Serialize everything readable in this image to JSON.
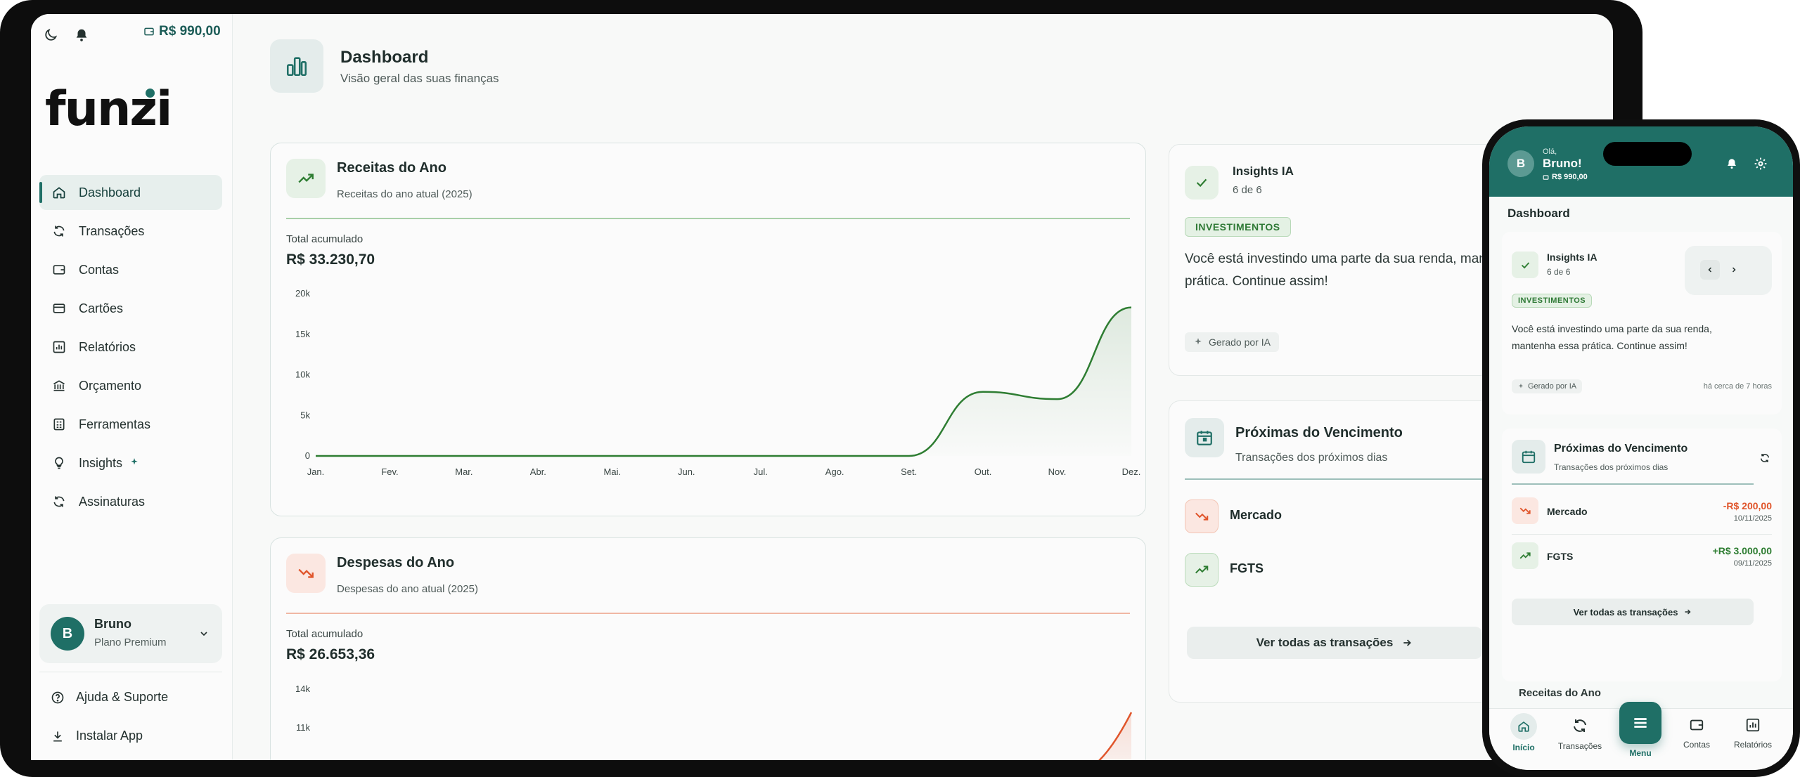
{
  "desktop": {
    "topbar": {
      "balance": "R$ 990,00"
    },
    "logo": "funzi",
    "nav": [
      {
        "label": "Dashboard",
        "icon": "home-icon",
        "active": true
      },
      {
        "label": "Transações",
        "icon": "transactions-icon"
      },
      {
        "label": "Contas",
        "icon": "wallet-icon"
      },
      {
        "label": "Cartões",
        "icon": "card-icon"
      },
      {
        "label": "Relatórios",
        "icon": "chart-icon"
      },
      {
        "label": "Orçamento",
        "icon": "bank-icon"
      },
      {
        "label": "Ferramentas",
        "icon": "calculator-icon"
      },
      {
        "label": "Insights",
        "icon": "lightbulb-icon"
      },
      {
        "label": "Assinaturas",
        "icon": "refresh-icon"
      }
    ],
    "user": {
      "initial": "B",
      "name": "Bruno",
      "plan": "Plano Premium"
    },
    "footer": {
      "help": "Ajuda & Suporte",
      "install": "Instalar App"
    },
    "page": {
      "title": "Dashboard",
      "subtitle": "Visão geral das suas finanças"
    },
    "revenue_card": {
      "title": "Receitas do Ano",
      "subtitle": "Receitas do ano atual (2025)",
      "total_label": "Total acumulado",
      "total": "R$ 33.230,70"
    },
    "expense_card": {
      "title": "Despesas do Ano",
      "subtitle": "Despesas do ano atual (2025)",
      "total_label": "Total acumulado",
      "total": "R$ 26.653,36"
    },
    "insights": {
      "title": "Insights IA",
      "counter": "6 de 6",
      "badge": "INVESTIMENTOS",
      "text_line1": "Você está investindo uma parte da sua renda, man",
      "text_line2": "prática. Continue assim!",
      "ai_label": "Gerado por IA"
    },
    "upcoming": {
      "title": "Próximas do Vencimento",
      "subtitle": "Transações dos próximos dias",
      "items": [
        {
          "name": "Mercado",
          "type": "expense"
        },
        {
          "name": "FGTS",
          "type": "income"
        }
      ],
      "see_all": "Ver todas as transações"
    },
    "colors": {
      "brand": "#1f6f66",
      "income": "#2e7d32",
      "expense": "#e0552b"
    }
  },
  "chart_data": [
    {
      "type": "area",
      "title": "Receitas do Ano",
      "categories": [
        "Jan.",
        "Fev.",
        "Mar.",
        "Abr.",
        "Mai.",
        "Jun.",
        "Jul.",
        "Ago.",
        "Set.",
        "Out.",
        "Nov.",
        "Dez."
      ],
      "values": [
        0,
        0,
        0,
        0,
        0,
        0,
        0,
        0,
        0,
        7900,
        7000,
        18300
      ],
      "y_ticks": [
        "0",
        "5k",
        "10k",
        "15k",
        "20k"
      ],
      "ylim": [
        0,
        20000
      ],
      "grid": false,
      "color": "#2e7d32"
    },
    {
      "type": "area",
      "title": "Despesas do Ano",
      "y_ticks": [
        "11k",
        "14k"
      ],
      "color": "#e0552b"
    }
  ],
  "mobile": {
    "greeting": "Olá,",
    "name": "Bruno!",
    "initial": "B",
    "balance": "R$ 990,00",
    "section_title": "Dashboard",
    "insights": {
      "title": "Insights IA",
      "counter": "6 de 6",
      "badge": "INVESTIMENTOS",
      "text_line1": "Você está investindo uma parte da sua renda,",
      "text_line2": "mantenha essa prática. Continue assim!",
      "ai_label": "Gerado por IA",
      "time": "há cerca de 7 horas"
    },
    "upcoming": {
      "title": "Próximas do Vencimento",
      "subtitle": "Transações dos próximos dias",
      "items": [
        {
          "name": "Mercado",
          "amount": "-R$ 200,00",
          "date": "10/11/2025",
          "type": "expense"
        },
        {
          "name": "FGTS",
          "amount": "+R$ 3.000,00",
          "date": "09/11/2025",
          "type": "income"
        }
      ],
      "see_all": "Ver todas as transações"
    },
    "next_section": "Receitas do Ano",
    "bottom_nav": [
      "Início",
      "Transações",
      "Menu",
      "Contas",
      "Relatórios"
    ]
  }
}
